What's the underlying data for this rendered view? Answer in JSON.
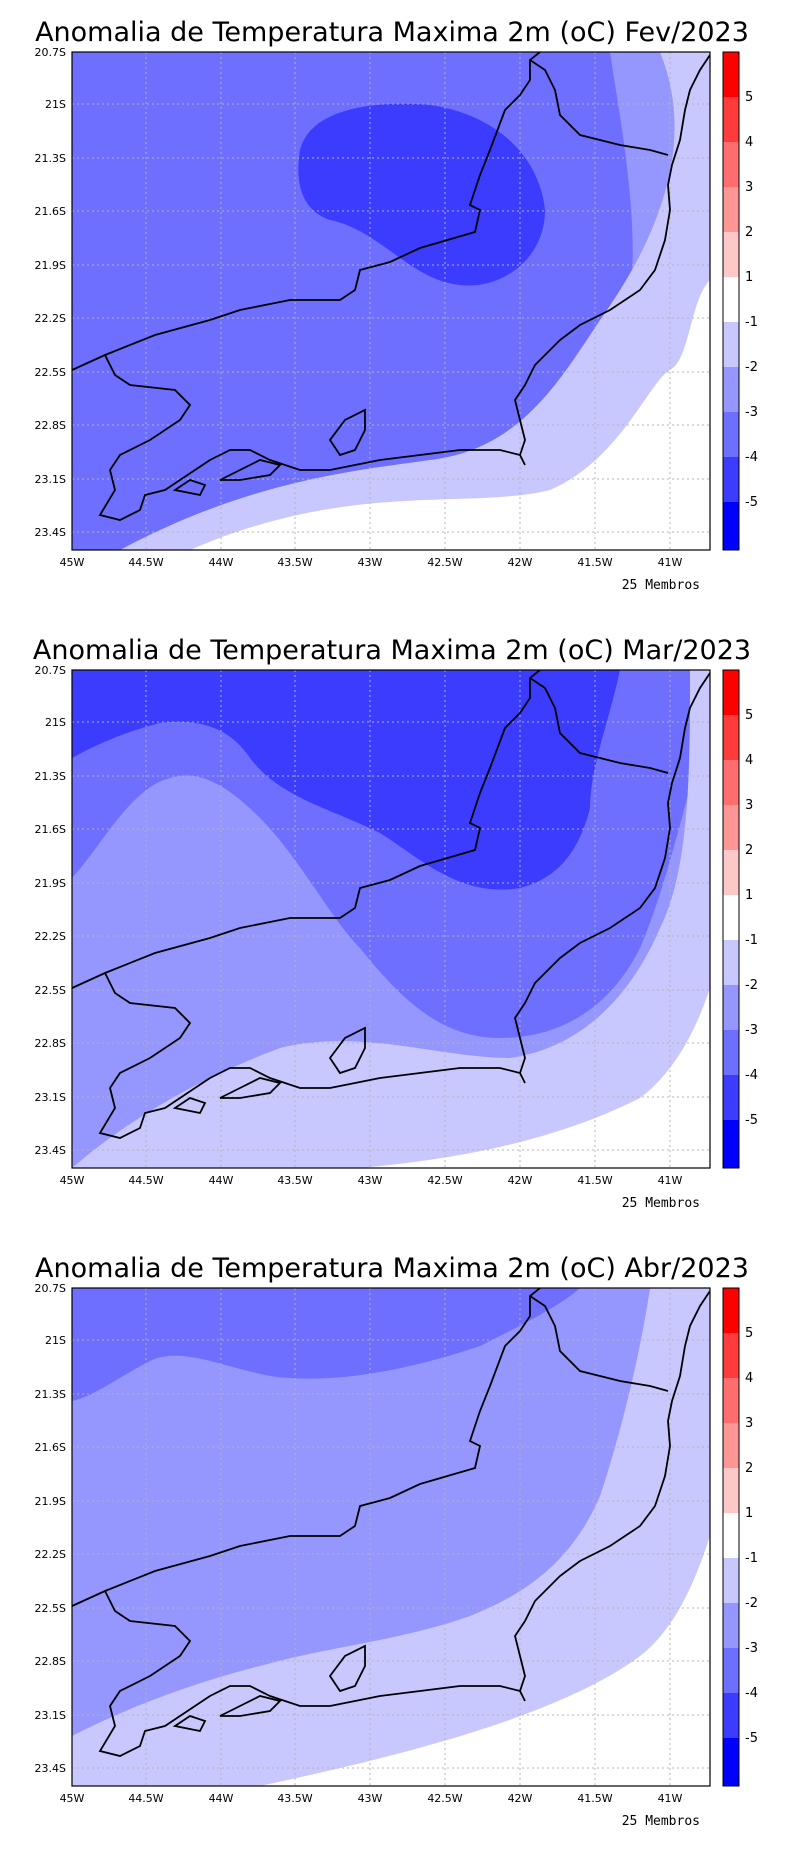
{
  "panels": [
    {
      "title": "Anomalia de Temperatura Maxima 2m (oC) Fev/2023",
      "members": "25 Membros"
    },
    {
      "title": "Anomalia de Temperatura Maxima 2m (oC) Mar/2023",
      "members": "25 Membros"
    },
    {
      "title": "Anomalia de Temperatura Maxima 2m (oC) Abr/2023",
      "members": "25 Membros"
    }
  ],
  "lat_ticks": [
    "20.7S",
    "21S",
    "21.3S",
    "21.6S",
    "21.9S",
    "22.2S",
    "22.5S",
    "22.8S",
    "23.1S",
    "23.4S"
  ],
  "lon_ticks": [
    "45W",
    "44.5W",
    "44W",
    "43.5W",
    "43W",
    "42.5W",
    "42W",
    "41.5W",
    "41W"
  ],
  "colorbar": {
    "labels": [
      "5",
      "4",
      "3",
      "2",
      "1",
      "-1",
      "-2",
      "-3",
      "-4",
      "-5"
    ],
    "colors": [
      "#ff0000",
      "#ff3c3c",
      "#ff6e6e",
      "#ff9696",
      "#ffc8c8",
      "#ffffff",
      "#c8c8ff",
      "#9696ff",
      "#6e6eff",
      "#3c3cff",
      "#0000ff"
    ]
  },
  "shading": {
    "gt_minus1": "#ffffff",
    "m2_m1": "#c8c8ff",
    "m3_m2": "#9696ff",
    "m4_m3": "#6e6eff",
    "m5_m4": "#3c3cff"
  }
}
